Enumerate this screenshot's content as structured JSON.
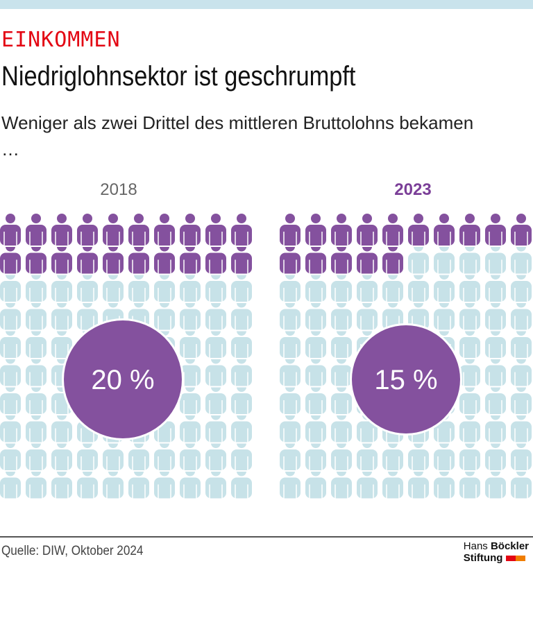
{
  "header": {
    "kicker": "EINKOMMEN",
    "title": "Niedriglohnsektor ist geschrumpft",
    "subtitle": "Weniger als zwei Drittel des mittleren Bruttolohns bekamen …"
  },
  "chart_data": {
    "type": "pictogram",
    "icon": "person-icon",
    "total_icons": 100,
    "panels": [
      {
        "year": "2018",
        "highlighted": 20,
        "label": "20 %"
      },
      {
        "year": "2023",
        "highlighted": 15,
        "label": "15 %"
      }
    ],
    "colors": {
      "highlight": "#84519e",
      "base": "#c7e2e8",
      "badge": "#84519e"
    }
  },
  "footer": {
    "source": "Quelle: DIW, Oktober 2024",
    "logo_line1_a": "Hans",
    "logo_line1_b": "Böckler",
    "logo_line2": "Stiftung"
  }
}
